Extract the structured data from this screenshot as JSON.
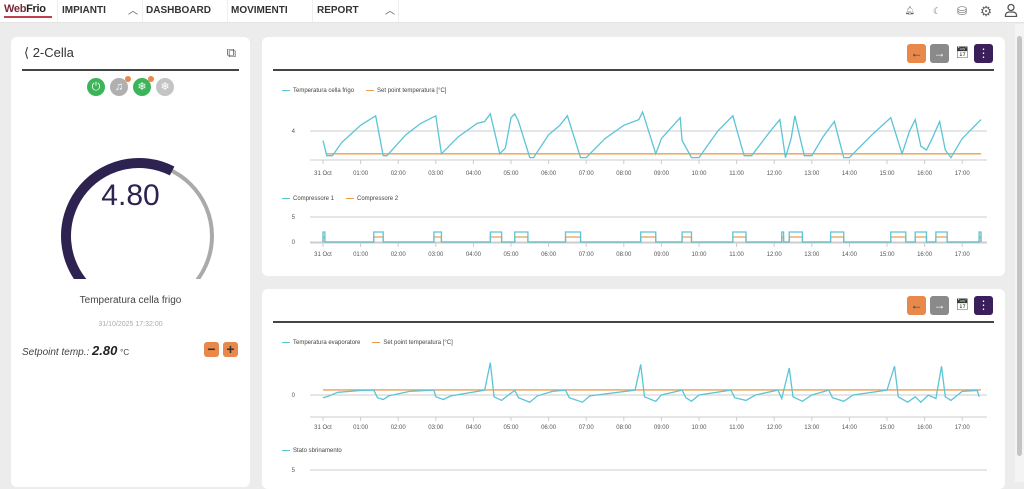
{
  "header": {
    "logo": "WebFrio",
    "nav": [
      "IMPIANTI",
      "DASHBOARD",
      "MOVIMENTI",
      "REPORT"
    ]
  },
  "panel": {
    "title": "2-Cella",
    "value": "4.80",
    "label": "Temperatura cella frigo",
    "timestamp": "31/10/2025 17:32:00",
    "setpoint_label": "Setpoint temp.:",
    "setpoint_value": "2.80",
    "setpoint_unit": "°C",
    "gauge_fill_fraction": 0.6,
    "status_icons": [
      "power-icon",
      "alarm-bell-icon",
      "defrost-snowflake-icon",
      "snowflake-icon"
    ]
  },
  "colors": {
    "accent": "#e8884a",
    "purple": "#3a1f5c",
    "series1": "#5bc4d6",
    "series2": "#e8a050",
    "green": "#3cb45a"
  },
  "chart_data": [
    {
      "type": "line",
      "title": "",
      "legend": [
        "Temperatura cella frigo",
        "Set point temperatura [°C]"
      ],
      "x_ticks": [
        "31 Oct",
        "01:00",
        "02:00",
        "03:00",
        "04:00",
        "05:00",
        "06:00",
        "07:00",
        "08:00",
        "09:00",
        "10:00",
        "11:00",
        "12:00",
        "13:00",
        "14:00",
        "15:00",
        "16:00",
        "17:00"
      ],
      "y_ticks": [
        4
      ],
      "ylim": [
        2.2,
        5.2
      ],
      "series": [
        {
          "name": "Temperatura cella frigo",
          "points": [
            [
              0,
              3.5
            ],
            [
              0.1,
              2.7
            ],
            [
              0.25,
              2.7
            ],
            [
              0.5,
              3.4
            ],
            [
              1.0,
              4.3
            ],
            [
              1.4,
              4.8
            ],
            [
              1.6,
              2.7
            ],
            [
              1.7,
              2.7
            ],
            [
              2.2,
              3.8
            ],
            [
              2.6,
              4.4
            ],
            [
              3.0,
              4.8
            ],
            [
              3.15,
              2.8
            ],
            [
              3.6,
              3.7
            ],
            [
              4.1,
              4.4
            ],
            [
              4.3,
              4.5
            ],
            [
              4.45,
              4.9
            ],
            [
              4.7,
              2.8
            ],
            [
              4.85,
              3.1
            ],
            [
              5.0,
              4.7
            ],
            [
              5.1,
              4.9
            ],
            [
              5.2,
              4.5
            ],
            [
              5.5,
              2.6
            ],
            [
              5.6,
              2.6
            ],
            [
              6.0,
              3.8
            ],
            [
              6.3,
              4.3
            ],
            [
              6.5,
              4.8
            ],
            [
              6.85,
              2.6
            ],
            [
              7.0,
              2.6
            ],
            [
              7.5,
              3.6
            ],
            [
              8.0,
              4.3
            ],
            [
              8.4,
              4.6
            ],
            [
              8.5,
              5.0
            ],
            [
              8.85,
              2.8
            ],
            [
              9.0,
              3.6
            ],
            [
              9.5,
              4.7
            ],
            [
              9.55,
              3.5
            ],
            [
              9.8,
              2.6
            ],
            [
              10.0,
              2.6
            ],
            [
              10.5,
              4.0
            ],
            [
              10.9,
              4.8
            ],
            [
              11.2,
              2.7
            ],
            [
              11.4,
              2.7
            ],
            [
              11.9,
              4.0
            ],
            [
              12.15,
              4.6
            ],
            [
              12.3,
              2.6
            ],
            [
              12.45,
              3.6
            ],
            [
              12.55,
              4.8
            ],
            [
              12.8,
              2.7
            ],
            [
              13.0,
              2.7
            ],
            [
              13.3,
              3.7
            ],
            [
              13.6,
              4.5
            ],
            [
              13.85,
              2.6
            ],
            [
              14.0,
              2.6
            ],
            [
              14.6,
              3.8
            ],
            [
              15.1,
              4.7
            ],
            [
              15.4,
              2.8
            ],
            [
              15.6,
              4.0
            ],
            [
              15.75,
              4.6
            ],
            [
              15.9,
              3.2
            ],
            [
              16.05,
              3.0
            ],
            [
              16.2,
              3.6
            ],
            [
              16.4,
              4.5
            ],
            [
              16.55,
              3.0
            ],
            [
              16.7,
              2.6
            ],
            [
              17.0,
              3.6
            ],
            [
              17.5,
              4.6
            ]
          ]
        },
        {
          "name": "Set point temperatura [°C]",
          "points": [
            [
              0.1,
              2.8
            ],
            [
              17.5,
              2.8
            ]
          ]
        }
      ]
    },
    {
      "type": "line",
      "title": "",
      "legend": [
        "Compressore 1",
        "Compressore 2"
      ],
      "x_ticks": [
        "31 Oct",
        "01:00",
        "02:00",
        "03:00",
        "04:00",
        "05:00",
        "06:00",
        "07:00",
        "08:00",
        "09:00",
        "10:00",
        "11:00",
        "12:00",
        "13:00",
        "14:00",
        "15:00",
        "16:00",
        "17:00"
      ],
      "y_ticks": [
        0,
        5
      ],
      "ylim": [
        0,
        5
      ],
      "on_intervals": [
        [
          0,
          0.05
        ],
        [
          1.35,
          1.6
        ],
        [
          2.95,
          3.15
        ],
        [
          4.45,
          4.75
        ],
        [
          5.1,
          5.45
        ],
        [
          6.45,
          6.85
        ],
        [
          8.45,
          8.85
        ],
        [
          9.55,
          9.8
        ],
        [
          10.9,
          11.25
        ],
        [
          12.2,
          12.25
        ],
        [
          12.4,
          12.75
        ],
        [
          13.5,
          13.85
        ],
        [
          15.1,
          15.5
        ],
        [
          15.75,
          16.05
        ],
        [
          16.3,
          16.6
        ],
        [
          17.45,
          17.5
        ]
      ],
      "series": [
        {
          "name": "Compressore 1",
          "on_value": 2
        },
        {
          "name": "Compressore 2",
          "on_value": 1
        }
      ]
    },
    {
      "type": "line",
      "title": "",
      "legend": [
        "Temperatura evaporatore",
        "Set point temperatura [°C]"
      ],
      "x_ticks": [
        "31 Oct",
        "01:00",
        "02:00",
        "03:00",
        "04:00",
        "05:00",
        "06:00",
        "07:00",
        "08:00",
        "09:00",
        "10:00",
        "11:00",
        "12:00",
        "13:00",
        "14:00",
        "15:00",
        "16:00",
        "17:00"
      ],
      "y_ticks": [
        0
      ],
      "ylim": [
        -8,
        20
      ],
      "series": [
        {
          "name": "Temperatura evaporatore",
          "points": [
            [
              0,
              -1.5
            ],
            [
              0.1,
              -1
            ],
            [
              0.4,
              1.5
            ],
            [
              1.0,
              2.5
            ],
            [
              1.35,
              2.7
            ],
            [
              1.45,
              -1.5
            ],
            [
              1.6,
              -2.5
            ],
            [
              1.75,
              -0.5
            ],
            [
              2.3,
              2
            ],
            [
              2.95,
              2.7
            ],
            [
              3.0,
              -1
            ],
            [
              3.2,
              -2.5
            ],
            [
              3.4,
              -0.5
            ],
            [
              4.3,
              2.7
            ],
            [
              4.45,
              18
            ],
            [
              4.55,
              -1
            ],
            [
              4.75,
              -3
            ],
            [
              4.9,
              -0.5
            ],
            [
              5.1,
              2.5
            ],
            [
              5.2,
              -1.5
            ],
            [
              5.5,
              -4
            ],
            [
              5.7,
              -0.5
            ],
            [
              6.1,
              2
            ],
            [
              6.45,
              2.7
            ],
            [
              6.55,
              -1.5
            ],
            [
              6.9,
              -4
            ],
            [
              7.1,
              -0.5
            ],
            [
              8.3,
              2.7
            ],
            [
              8.45,
              17
            ],
            [
              8.55,
              -1
            ],
            [
              8.85,
              -3.5
            ],
            [
              9.0,
              0
            ],
            [
              9.55,
              2.7
            ],
            [
              9.65,
              -1.5
            ],
            [
              9.8,
              -3.5
            ],
            [
              10.0,
              0
            ],
            [
              10.85,
              2.7
            ],
            [
              10.95,
              -1.5
            ],
            [
              11.25,
              -3
            ],
            [
              11.5,
              0
            ],
            [
              12.1,
              2.7
            ],
            [
              12.2,
              -2
            ],
            [
              12.4,
              15
            ],
            [
              12.5,
              -1
            ],
            [
              12.75,
              -3.5
            ],
            [
              13.0,
              0
            ],
            [
              13.45,
              2.7
            ],
            [
              13.55,
              -1.5
            ],
            [
              13.85,
              -3.5
            ],
            [
              14.1,
              0
            ],
            [
              15.0,
              2.7
            ],
            [
              15.2,
              16
            ],
            [
              15.3,
              -1
            ],
            [
              15.55,
              -4
            ],
            [
              15.75,
              -1
            ],
            [
              15.9,
              -4
            ],
            [
              16.1,
              0
            ],
            [
              16.3,
              -2
            ],
            [
              16.45,
              16
            ],
            [
              16.55,
              -1
            ],
            [
              16.7,
              -3
            ],
            [
              17.0,
              2.0
            ],
            [
              17.4,
              2.5
            ],
            [
              17.45,
              -1
            ]
          ]
        },
        {
          "name": "Set point temperatura [°C]",
          "points": [
            [
              0,
              2.8
            ],
            [
              17.5,
              2.8
            ]
          ]
        }
      ]
    },
    {
      "type": "line",
      "title": "",
      "legend": [
        "Stato sbrinamento"
      ],
      "y_ticks": [
        5
      ],
      "series": [
        {
          "name": "Stato sbrinamento",
          "points": []
        }
      ]
    }
  ]
}
